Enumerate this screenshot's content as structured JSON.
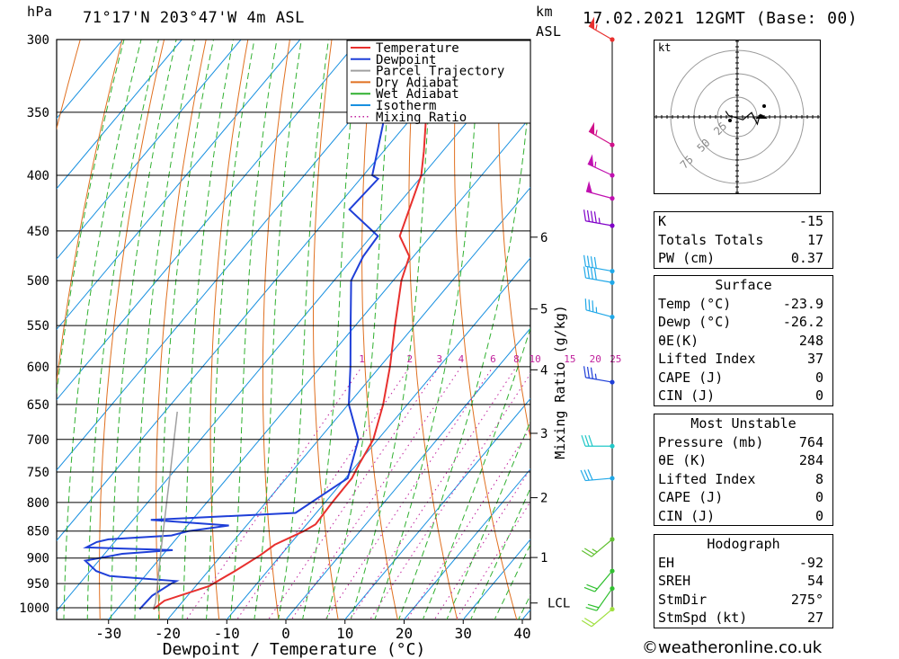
{
  "header": {
    "hpa_label": "hPa",
    "location": "71°17'N  203°47'W  4m  ASL",
    "km_label": "km",
    "asl_label": "ASL",
    "datetime": "17.02.2021  12GMT  (Base: 00)"
  },
  "legend": {
    "items": [
      {
        "label": "Temperature",
        "color": "#e8302e",
        "style": "solid"
      },
      {
        "label": "Dewpoint",
        "color": "#1f3fd8",
        "style": "solid"
      },
      {
        "label": "Parcel Trajectory",
        "color": "#a0a0a0",
        "style": "solid"
      },
      {
        "label": "Dry Adiabat",
        "color": "#e07020",
        "style": "solid"
      },
      {
        "label": "Wet Adiabat",
        "color": "#30b030",
        "style": "solid"
      },
      {
        "label": "Isotherm",
        "color": "#1890e0",
        "style": "solid"
      },
      {
        "label": "Mixing Ratio",
        "color": "#c0209c",
        "style": "dotted"
      }
    ]
  },
  "chart_data": {
    "type": "line",
    "subtype": "skew-T log-P diagram",
    "xlabel": "Dewpoint / Temperature (°C)",
    "ylabel": "hPa",
    "x_ticks": [
      -30,
      -20,
      -10,
      0,
      10,
      20,
      30,
      40
    ],
    "pressure_levels": [
      300,
      350,
      400,
      450,
      500,
      550,
      600,
      650,
      700,
      750,
      800,
      850,
      900,
      950,
      1000
    ],
    "km_ticks": [
      {
        "label": "6",
        "p": 456
      },
      {
        "label": "5",
        "p": 531
      },
      {
        "label": "4",
        "p": 604
      },
      {
        "label": "3",
        "p": 691
      },
      {
        "label": "2",
        "p": 792
      },
      {
        "label": "1",
        "p": 899
      },
      {
        "label": "LCL",
        "p": 990
      }
    ],
    "right_axis_label": "Mixing Ratio (g/kg)",
    "mixing_ratio_labels": [
      "1",
      "2",
      "3",
      "4",
      "6",
      "8",
      "10",
      "15",
      "20",
      "25"
    ],
    "series": [
      {
        "name": "Temperature",
        "color": "#e8302e",
        "points": [
          [
            1003,
            -23.9
          ],
          [
            985,
            -23.2
          ],
          [
            955,
            -17.7
          ],
          [
            925,
            -15.5
          ],
          [
            895,
            -13.5
          ],
          [
            875,
            -12.5
          ],
          [
            850,
            -9.5
          ],
          [
            838,
            -8.5
          ],
          [
            800,
            -8.8
          ],
          [
            760,
            -8.9
          ],
          [
            740,
            -9.6
          ],
          [
            700,
            -10.8
          ],
          [
            650,
            -14.1
          ],
          [
            600,
            -18.3
          ],
          [
            550,
            -23.3
          ],
          [
            500,
            -28.6
          ],
          [
            475,
            -30.7
          ],
          [
            455,
            -35.2
          ],
          [
            400,
            -40.2
          ],
          [
            380,
            -43.2
          ],
          [
            350,
            -48.3
          ],
          [
            300,
            -57.8
          ]
        ]
      },
      {
        "name": "Dewpoint",
        "color": "#1f3fd8",
        "points": [
          [
            1003,
            -26.2
          ],
          [
            975,
            -26.0
          ],
          [
            950,
            -24.5
          ],
          [
            945,
            -24.0
          ],
          [
            935,
            -36.0
          ],
          [
            925,
            -39.0
          ],
          [
            905,
            -42.3
          ],
          [
            892,
            -37.0
          ],
          [
            885,
            -29.0
          ],
          [
            880,
            -44.0
          ],
          [
            870,
            -43.0
          ],
          [
            865,
            -41.4
          ],
          [
            858,
            -31.3
          ],
          [
            850,
            -29.0
          ],
          [
            840,
            -23.0
          ],
          [
            830,
            -37.0
          ],
          [
            818,
            -13.5
          ],
          [
            760,
            -9.6
          ],
          [
            750,
            -10.2
          ],
          [
            700,
            -13.3
          ],
          [
            650,
            -19.9
          ],
          [
            600,
            -25.0
          ],
          [
            550,
            -30.8
          ],
          [
            500,
            -37.1
          ],
          [
            475,
            -38.5
          ],
          [
            455,
            -38.9
          ],
          [
            430,
            -47.5
          ],
          [
            403,
            -47.0
          ],
          [
            400,
            -48.5
          ],
          [
            360,
            -53.8
          ],
          [
            340,
            -56.8
          ],
          [
            300,
            -64.8
          ]
        ]
      },
      {
        "name": "Parcel Trajectory",
        "color": "#a0a0a0",
        "points": [
          [
            1003,
            -23.9
          ],
          [
            990,
            -24.4
          ],
          [
            950,
            -26.8
          ],
          [
            900,
            -30.0
          ],
          [
            850,
            -33.3
          ],
          [
            800,
            -36.8
          ],
          [
            750,
            -40.5
          ],
          [
            700,
            -44.5
          ],
          [
            660,
            -47.9
          ]
        ]
      }
    ],
    "wind_barbs": [
      {
        "p": 300,
        "color": "#e8302e",
        "dir": 300,
        "kt": 55
      },
      {
        "p": 375,
        "color": "#d0108a",
        "dir": 300,
        "kt": 55
      },
      {
        "p": 400,
        "color": "#c010b0",
        "dir": 295,
        "kt": 55
      },
      {
        "p": 420,
        "color": "#c010b0",
        "dir": 285,
        "kt": 50
      },
      {
        "p": 445,
        "color": "#8000c8",
        "dir": 280,
        "kt": 45
      },
      {
        "p": 490,
        "color": "#20a8e8",
        "dir": 280,
        "kt": 40
      },
      {
        "p": 502,
        "color": "#20a8e8",
        "dir": 280,
        "kt": 40
      },
      {
        "p": 540,
        "color": "#20a8e8",
        "dir": 285,
        "kt": 35
      },
      {
        "p": 620,
        "color": "#1f3fd8",
        "dir": 280,
        "kt": 35
      },
      {
        "p": 710,
        "color": "#20c8c8",
        "dir": 270,
        "kt": 30
      },
      {
        "p": 760,
        "color": "#20a8e8",
        "dir": 265,
        "kt": 30
      },
      {
        "p": 865,
        "color": "#60c030",
        "dir": 230,
        "kt": 25
      },
      {
        "p": 925,
        "color": "#30c030",
        "dir": 220,
        "kt": 20
      },
      {
        "p": 960,
        "color": "#30c030",
        "dir": 215,
        "kt": 20
      },
      {
        "p": 1003,
        "color": "#a0e040",
        "dir": 230,
        "kt": 20
      }
    ],
    "hodograph": {
      "unit_label": "kt",
      "ring_labels": [
        "25",
        "50",
        "75"
      ],
      "points": [
        [
          -8,
          -4
        ],
        [
          -6,
          -1
        ],
        [
          4,
          2
        ],
        [
          10,
          -3
        ],
        [
          14,
          5
        ],
        [
          16,
          -2
        ]
      ]
    }
  },
  "indices": {
    "general": [
      {
        "label": "K",
        "value": "-15"
      },
      {
        "label": "Totals Totals",
        "value": "17"
      },
      {
        "label": "PW (cm)",
        "value": "0.37"
      }
    ],
    "surface": {
      "title": "Surface",
      "rows": [
        {
          "label": "Temp (°C)",
          "value": "-23.9"
        },
        {
          "label": "Dewp (°C)",
          "value": "-26.2"
        },
        {
          "label": "θE(K)",
          "value": "248"
        },
        {
          "label": "Lifted Index",
          "value": "37"
        },
        {
          "label": "CAPE (J)",
          "value": "0"
        },
        {
          "label": "CIN (J)",
          "value": "0"
        }
      ]
    },
    "most_unstable": {
      "title": "Most Unstable",
      "rows": [
        {
          "label": "Pressure (mb)",
          "value": "764"
        },
        {
          "label": "θE (K)",
          "value": "284"
        },
        {
          "label": "Lifted Index",
          "value": "8"
        },
        {
          "label": "CAPE (J)",
          "value": "0"
        },
        {
          "label": "CIN (J)",
          "value": "0"
        }
      ]
    },
    "hodograph": {
      "title": "Hodograph",
      "rows": [
        {
          "label": "EH",
          "value": "-92"
        },
        {
          "label": "SREH",
          "value": "54"
        },
        {
          "label": "StmDir",
          "value": "275°"
        },
        {
          "label": "StmSpd (kt)",
          "value": "27"
        }
      ]
    }
  },
  "footer": {
    "copyright": "©weatheronline.co.uk"
  }
}
